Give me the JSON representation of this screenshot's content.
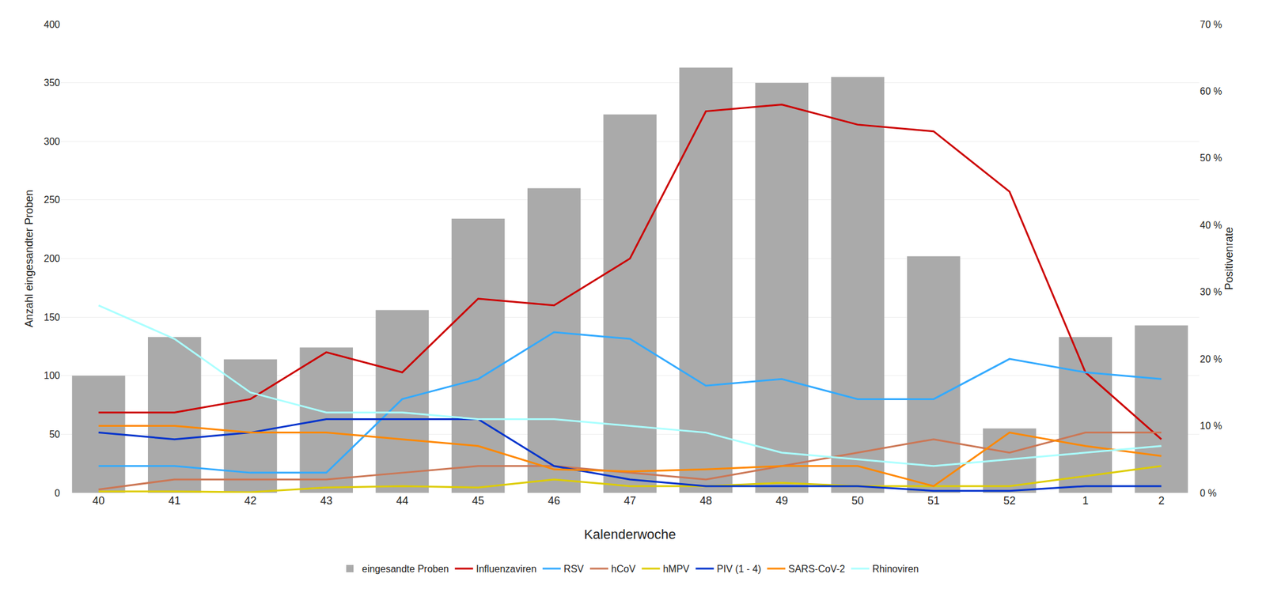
{
  "chart_data": {
    "type": "bar",
    "categories": [
      "40",
      "41",
      "42",
      "43",
      "44",
      "45",
      "46",
      "47",
      "48",
      "49",
      "50",
      "51",
      "52",
      "1",
      "2"
    ],
    "xlabel": "Kalenderwoche",
    "ylabel": "Anzahl eingesandter Proben",
    "y2label": "Positivenrate",
    "ylim": [
      0,
      400
    ],
    "yticks": [
      0,
      50,
      100,
      150,
      200,
      250,
      300,
      350,
      400
    ],
    "y2lim": [
      0,
      0.7
    ],
    "y2ticks": [
      {
        "value": 0.0,
        "label": "0 %"
      },
      {
        "value": 0.1,
        "label": "10 %"
      },
      {
        "value": 0.2,
        "label": "20 %"
      },
      {
        "value": 0.3,
        "label": "30 %"
      },
      {
        "value": 0.4,
        "label": "40 %"
      },
      {
        "value": 0.5,
        "label": "50 %"
      },
      {
        "value": 0.6,
        "label": "60 %"
      },
      {
        "value": 0.7,
        "label": "70 %"
      }
    ],
    "grid": true,
    "legend": "bottom",
    "series": [
      {
        "name": "eingesandte Proben",
        "type": "bar",
        "color": "#aaaaaa",
        "values": [
          100,
          133,
          114,
          124,
          156,
          234,
          260,
          323,
          363,
          350,
          355,
          202,
          55,
          133,
          143
        ]
      },
      {
        "name": "Influenzaviren",
        "type": "line",
        "axis": "y2",
        "color": "#cc0000",
        "values": [
          0.12,
          0.12,
          0.14,
          0.21,
          0.18,
          0.29,
          0.28,
          0.35,
          0.57,
          0.58,
          0.55,
          0.54,
          0.45,
          0.18,
          0.08
        ]
      },
      {
        "name": "RSV",
        "type": "line",
        "axis": "y2",
        "color": "#33aaff",
        "values": [
          0.04,
          0.04,
          0.03,
          0.03,
          0.14,
          0.17,
          0.24,
          0.23,
          0.16,
          0.17,
          0.14,
          0.14,
          0.2,
          0.18,
          0.17
        ]
      },
      {
        "name": "hCoV",
        "type": "line",
        "axis": "y2",
        "color": "#cc7755",
        "values": [
          0.005,
          0.02,
          0.02,
          0.02,
          0.03,
          0.04,
          0.04,
          0.03,
          0.02,
          0.04,
          0.06,
          0.08,
          0.06,
          0.09,
          0.09
        ]
      },
      {
        "name": "hMPV",
        "type": "line",
        "axis": "y2",
        "color": "#ddcc00",
        "values": [
          0.002,
          0.002,
          0.001,
          0.008,
          0.01,
          0.008,
          0.02,
          0.01,
          0.01,
          0.015,
          0.01,
          0.01,
          0.01,
          0.025,
          0.04
        ]
      },
      {
        "name": "PIV (1 - 4)",
        "type": "line",
        "axis": "y2",
        "color": "#0033cc",
        "values": [
          0.09,
          0.08,
          0.09,
          0.11,
          0.11,
          0.11,
          0.04,
          0.02,
          0.01,
          0.01,
          0.01,
          0.003,
          0.003,
          0.01,
          0.01
        ]
      },
      {
        "name": "SARS-CoV-2",
        "type": "line",
        "axis": "y2",
        "color": "#ff8800",
        "values": [
          0.1,
          0.1,
          0.09,
          0.09,
          0.08,
          0.07,
          0.035,
          0.032,
          0.035,
          0.04,
          0.04,
          0.01,
          0.09,
          0.07,
          0.055
        ]
      },
      {
        "name": "Rhinoviren",
        "type": "line",
        "axis": "y2",
        "color": "#aaffff",
        "values": [
          0.28,
          0.23,
          0.15,
          0.12,
          0.12,
          0.11,
          0.11,
          0.1,
          0.09,
          0.06,
          0.05,
          0.04,
          0.05,
          0.06,
          0.07
        ]
      }
    ]
  }
}
